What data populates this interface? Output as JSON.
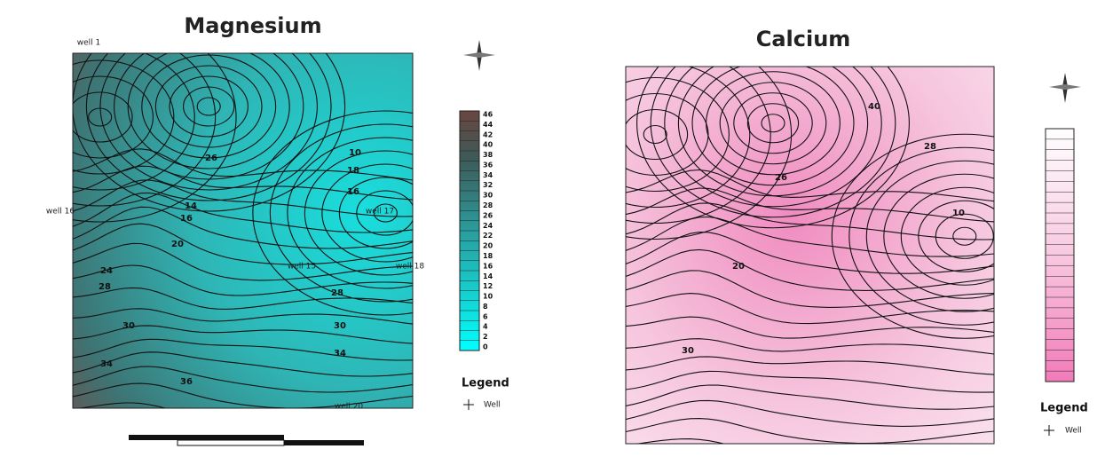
{
  "maps": [
    {
      "title": "Magnesium",
      "contour_labels": [
        14,
        16,
        20,
        24,
        28,
        30,
        34,
        36,
        10,
        16,
        18,
        30,
        34,
        28,
        26
      ],
      "wells": [
        "well 1",
        "well 16",
        "well 17",
        "well 15",
        "well 18",
        "well 20"
      ],
      "colorbar_ticks": [
        0,
        2,
        4,
        6,
        8,
        10,
        12,
        14,
        16,
        18,
        20,
        22,
        24,
        26,
        28,
        30,
        32,
        34,
        36,
        38,
        40,
        42,
        44,
        46
      ],
      "legend": {
        "title": "Legend",
        "item": "Well"
      }
    },
    {
      "title": "Calcium",
      "contour_labels": [
        20,
        30,
        10,
        26,
        40,
        28
      ],
      "legend": {
        "title": "Legend",
        "item": "Well"
      }
    }
  ]
}
